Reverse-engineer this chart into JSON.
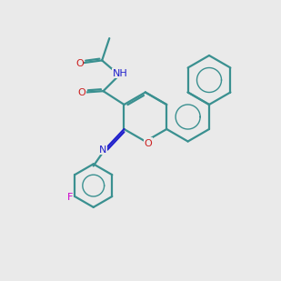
{
  "bg_color": "#eaeaea",
  "bond_color": "#3a9090",
  "N_color": "#2020cc",
  "O_color": "#cc2020",
  "F_color": "#cc00cc",
  "H_color": "#808080",
  "line_width": 1.6,
  "fig_size": [
    3.0,
    3.0
  ],
  "dpi": 100,
  "notes": "N-acetyl-3-[(3-fluorophenyl)imino]-3H-benzo[f]chromene-2-carboxamide"
}
